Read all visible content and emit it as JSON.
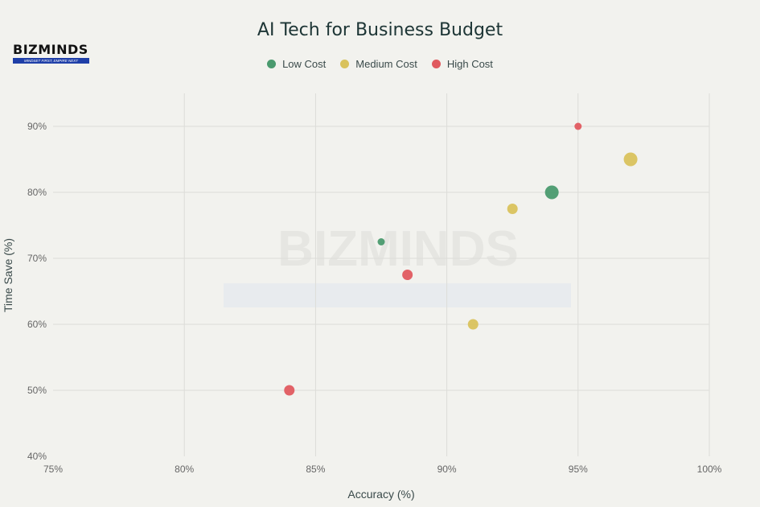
{
  "logo": {
    "text": "BIZMINDS",
    "tagline": "MINDSET FIRST, EMPIRE NEXT"
  },
  "watermark": {
    "text": "BIZMINDS"
  },
  "chart_data": {
    "type": "scatter",
    "title": "AI Tech for Business Budget",
    "xlabel": "Accuracy (%)",
    "ylabel": "Time Save (%)",
    "xlim": [
      75,
      100
    ],
    "ylim": [
      40,
      95
    ],
    "xticks": [
      75,
      80,
      85,
      90,
      95,
      100
    ],
    "yticks": [
      40,
      50,
      60,
      70,
      80,
      90
    ],
    "xtick_labels": [
      "75%",
      "80%",
      "85%",
      "90%",
      "95%",
      "100%"
    ],
    "ytick_labels": [
      "40%",
      "50%",
      "60%",
      "70%",
      "80%",
      "90%"
    ],
    "grid": true,
    "legend_placement": "top-center",
    "series": [
      {
        "name": "Low Cost",
        "color": "#4a9a6e",
        "points": [
          {
            "x": 87.5,
            "y": 72.5,
            "size": 1
          },
          {
            "x": 94,
            "y": 80,
            "size": 3
          }
        ]
      },
      {
        "name": "Medium Cost",
        "color": "#d9c25c",
        "points": [
          {
            "x": 97,
            "y": 85,
            "size": 3
          },
          {
            "x": 92.5,
            "y": 77.5,
            "size": 2
          },
          {
            "x": 91,
            "y": 60,
            "size": 2
          }
        ]
      },
      {
        "name": "High Cost",
        "color": "#e05a5f",
        "points": [
          {
            "x": 95,
            "y": 90,
            "size": 1
          },
          {
            "x": 88.5,
            "y": 67.5,
            "size": 2
          },
          {
            "x": 84,
            "y": 50,
            "size": 2
          }
        ]
      }
    ]
  }
}
